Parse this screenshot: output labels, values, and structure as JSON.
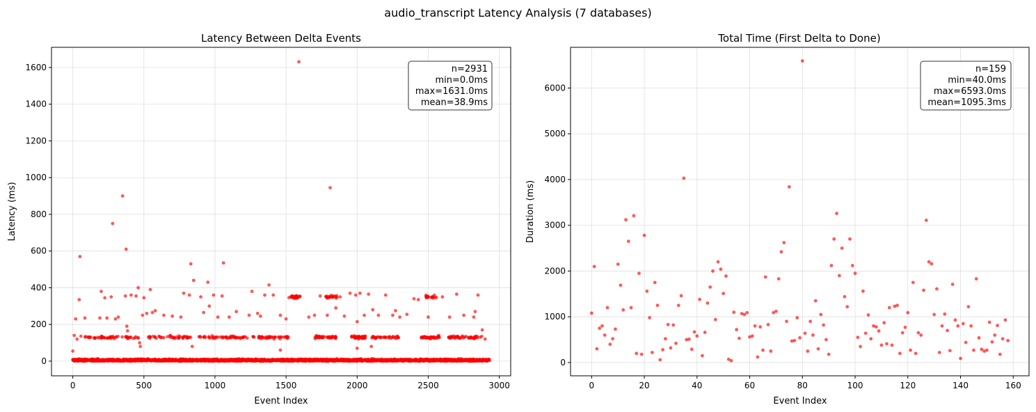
{
  "figure": {
    "suptitle": "audio_transcript Latency Analysis (7 databases)"
  },
  "colors": {
    "marker": "#ff0000",
    "grid": "#b0b0b0",
    "axis": "#000000"
  },
  "chart_data": [
    {
      "id": "left",
      "type": "scatter",
      "title": "Latency Between Delta Events",
      "xlabel": "Event Index",
      "ylabel": "Latency (ms)",
      "xlim": [
        -150,
        3080
      ],
      "ylim": [
        -80,
        1710
      ],
      "xticks": [
        0,
        500,
        1000,
        1500,
        2000,
        2500,
        3000
      ],
      "yticks": [
        0,
        200,
        400,
        600,
        800,
        1000,
        1200,
        1400,
        1600
      ],
      "grid": true,
      "stats": {
        "n": "n=2931",
        "min": "min=0.0ms",
        "max": "max=1631.0ms",
        "mean": "mean=38.9ms"
      },
      "stats_position": "top-right",
      "n_points": 2931,
      "bands": [
        {
          "center": 5,
          "spread": 10,
          "fraction": 0.8
        },
        {
          "center": 130,
          "spread": 12,
          "fraction": 0.13,
          "segments": [
            [
              40,
              460
            ],
            [
              530,
              830
            ],
            [
              880,
              1240
            ],
            [
              1260,
              1520
            ],
            [
              1700,
              1860
            ],
            [
              1960,
              2060
            ],
            [
              2100,
              2300
            ],
            [
              2450,
              2580
            ],
            [
              2640,
              2880
            ]
          ]
        },
        {
          "center": 350,
          "spread": 15,
          "fraction": 0.02,
          "segments": [
            [
              1520,
              1600
            ],
            [
              1780,
              1860
            ],
            [
              2480,
              2560
            ]
          ]
        }
      ],
      "points": [
        {
          "x": 50,
          "y": 570
        },
        {
          "x": 280,
          "y": 750
        },
        {
          "x": 350,
          "y": 900
        },
        {
          "x": 375,
          "y": 610
        },
        {
          "x": 830,
          "y": 530
        },
        {
          "x": 1060,
          "y": 535
        },
        {
          "x": 1590,
          "y": 1631
        },
        {
          "x": 1810,
          "y": 945
        },
        {
          "x": 20,
          "y": 230
        },
        {
          "x": 45,
          "y": 335
        },
        {
          "x": 85,
          "y": 235
        },
        {
          "x": 190,
          "y": 235
        },
        {
          "x": 200,
          "y": 380
        },
        {
          "x": 225,
          "y": 345
        },
        {
          "x": 240,
          "y": 235
        },
        {
          "x": 270,
          "y": 350
        },
        {
          "x": 300,
          "y": 230
        },
        {
          "x": 320,
          "y": 240
        },
        {
          "x": 370,
          "y": 355
        },
        {
          "x": 380,
          "y": 190
        },
        {
          "x": 385,
          "y": 165
        },
        {
          "x": 410,
          "y": 360
        },
        {
          "x": 445,
          "y": 355
        },
        {
          "x": 460,
          "y": 400
        },
        {
          "x": 470,
          "y": 100
        },
        {
          "x": 475,
          "y": 80
        },
        {
          "x": 490,
          "y": 250
        },
        {
          "x": 500,
          "y": 345
        },
        {
          "x": 520,
          "y": 260
        },
        {
          "x": 545,
          "y": 390
        },
        {
          "x": 560,
          "y": 265
        },
        {
          "x": 580,
          "y": 275
        },
        {
          "x": 640,
          "y": 250
        },
        {
          "x": 700,
          "y": 245
        },
        {
          "x": 760,
          "y": 240
        },
        {
          "x": 780,
          "y": 370
        },
        {
          "x": 820,
          "y": 360
        },
        {
          "x": 850,
          "y": 440
        },
        {
          "x": 900,
          "y": 350
        },
        {
          "x": 920,
          "y": 265
        },
        {
          "x": 950,
          "y": 430
        },
        {
          "x": 960,
          "y": 300
        },
        {
          "x": 990,
          "y": 360
        },
        {
          "x": 1020,
          "y": 240
        },
        {
          "x": 1050,
          "y": 355
        },
        {
          "x": 1100,
          "y": 240
        },
        {
          "x": 1150,
          "y": 270
        },
        {
          "x": 1240,
          "y": 250
        },
        {
          "x": 1260,
          "y": 380
        },
        {
          "x": 1300,
          "y": 260
        },
        {
          "x": 1320,
          "y": 245
        },
        {
          "x": 1350,
          "y": 360
        },
        {
          "x": 1380,
          "y": 415
        },
        {
          "x": 1410,
          "y": 360
        },
        {
          "x": 1460,
          "y": 250
        },
        {
          "x": 1500,
          "y": 230
        },
        {
          "x": 1660,
          "y": 240
        },
        {
          "x": 1700,
          "y": 250
        },
        {
          "x": 1740,
          "y": 355
        },
        {
          "x": 1790,
          "y": 250
        },
        {
          "x": 1850,
          "y": 290
        },
        {
          "x": 1880,
          "y": 350
        },
        {
          "x": 1910,
          "y": 245
        },
        {
          "x": 1950,
          "y": 370
        },
        {
          "x": 1990,
          "y": 360
        },
        {
          "x": 2000,
          "y": 215
        },
        {
          "x": 2020,
          "y": 370
        },
        {
          "x": 2050,
          "y": 250
        },
        {
          "x": 2080,
          "y": 365
        },
        {
          "x": 2110,
          "y": 280
        },
        {
          "x": 2150,
          "y": 250
        },
        {
          "x": 2200,
          "y": 360
        },
        {
          "x": 2250,
          "y": 250
        },
        {
          "x": 2270,
          "y": 275
        },
        {
          "x": 2300,
          "y": 240
        },
        {
          "x": 2350,
          "y": 255
        },
        {
          "x": 2400,
          "y": 340
        },
        {
          "x": 2430,
          "y": 335
        },
        {
          "x": 2500,
          "y": 240
        },
        {
          "x": 2600,
          "y": 350
        },
        {
          "x": 2650,
          "y": 240
        },
        {
          "x": 2700,
          "y": 365
        },
        {
          "x": 2750,
          "y": 250
        },
        {
          "x": 2820,
          "y": 240
        },
        {
          "x": 2830,
          "y": 270
        },
        {
          "x": 2850,
          "y": 360
        },
        {
          "x": 2880,
          "y": 170
        },
        {
          "x": 2900,
          "y": 120
        },
        {
          "x": 0,
          "y": 55
        },
        {
          "x": 10,
          "y": 140
        },
        {
          "x": 30,
          "y": 120
        },
        {
          "x": 840,
          "y": 80
        },
        {
          "x": 1460,
          "y": 60
        },
        {
          "x": 2000,
          "y": 70
        },
        {
          "x": 2100,
          "y": 80
        }
      ]
    },
    {
      "id": "right",
      "type": "scatter",
      "title": "Total Time (First Delta to Done)",
      "xlabel": "Event Index",
      "ylabel": "Duration (ms)",
      "xlim": [
        -8,
        166
      ],
      "ylim": [
        -290,
        6890
      ],
      "xticks": [
        0,
        20,
        40,
        60,
        80,
        100,
        120,
        140,
        160
      ],
      "yticks": [
        0,
        1000,
        2000,
        3000,
        4000,
        5000,
        6000
      ],
      "grid": true,
      "stats": {
        "n": "n=159",
        "min": "min=40.0ms",
        "max": "max=6593.0ms",
        "mean": "mean=1095.3ms"
      },
      "stats_position": "top-right",
      "y": [
        1080,
        2100,
        300,
        750,
        800,
        600,
        1200,
        400,
        520,
        730,
        2150,
        1690,
        1150,
        3120,
        2650,
        1200,
        3210,
        200,
        1950,
        180,
        2780,
        1560,
        980,
        220,
        1750,
        1250,
        60,
        280,
        520,
        830,
        320,
        820,
        420,
        1250,
        1460,
        4030,
        500,
        510,
        290,
        670,
        580,
        1380,
        150,
        660,
        1300,
        1650,
        2000,
        940,
        2200,
        2040,
        1510,
        1890,
        70,
        40,
        1100,
        720,
        530,
        1070,
        1050,
        1090,
        560,
        580,
        800,
        120,
        780,
        270,
        1870,
        830,
        250,
        1090,
        1120,
        1830,
        2420,
        2620,
        900,
        3840,
        470,
        480,
        980,
        540,
        6593,
        640,
        250,
        900,
        600,
        1350,
        300,
        1050,
        820,
        500,
        180,
        2120,
        2700,
        3260,
        1900,
        2500,
        1440,
        1220,
        2700,
        2120,
        1950,
        550,
        350,
        1560,
        640,
        1040,
        520,
        800,
        780,
        690,
        380,
        870,
        410,
        1200,
        380,
        1230,
        1250,
        200,
        650,
        770,
        1090,
        270,
        1750,
        200,
        650,
        600,
        1580,
        3110,
        2200,
        2160,
        1050,
        1610,
        220,
        800,
        1060,
        700,
        260,
        1710,
        930,
        800,
        90,
        850,
        440,
        1220,
        800,
        270,
        1830,
        540,
        290,
        250,
        270,
        880,
        450,
        600,
        810,
        180,
        520,
        930,
        480
      ]
    }
  ]
}
